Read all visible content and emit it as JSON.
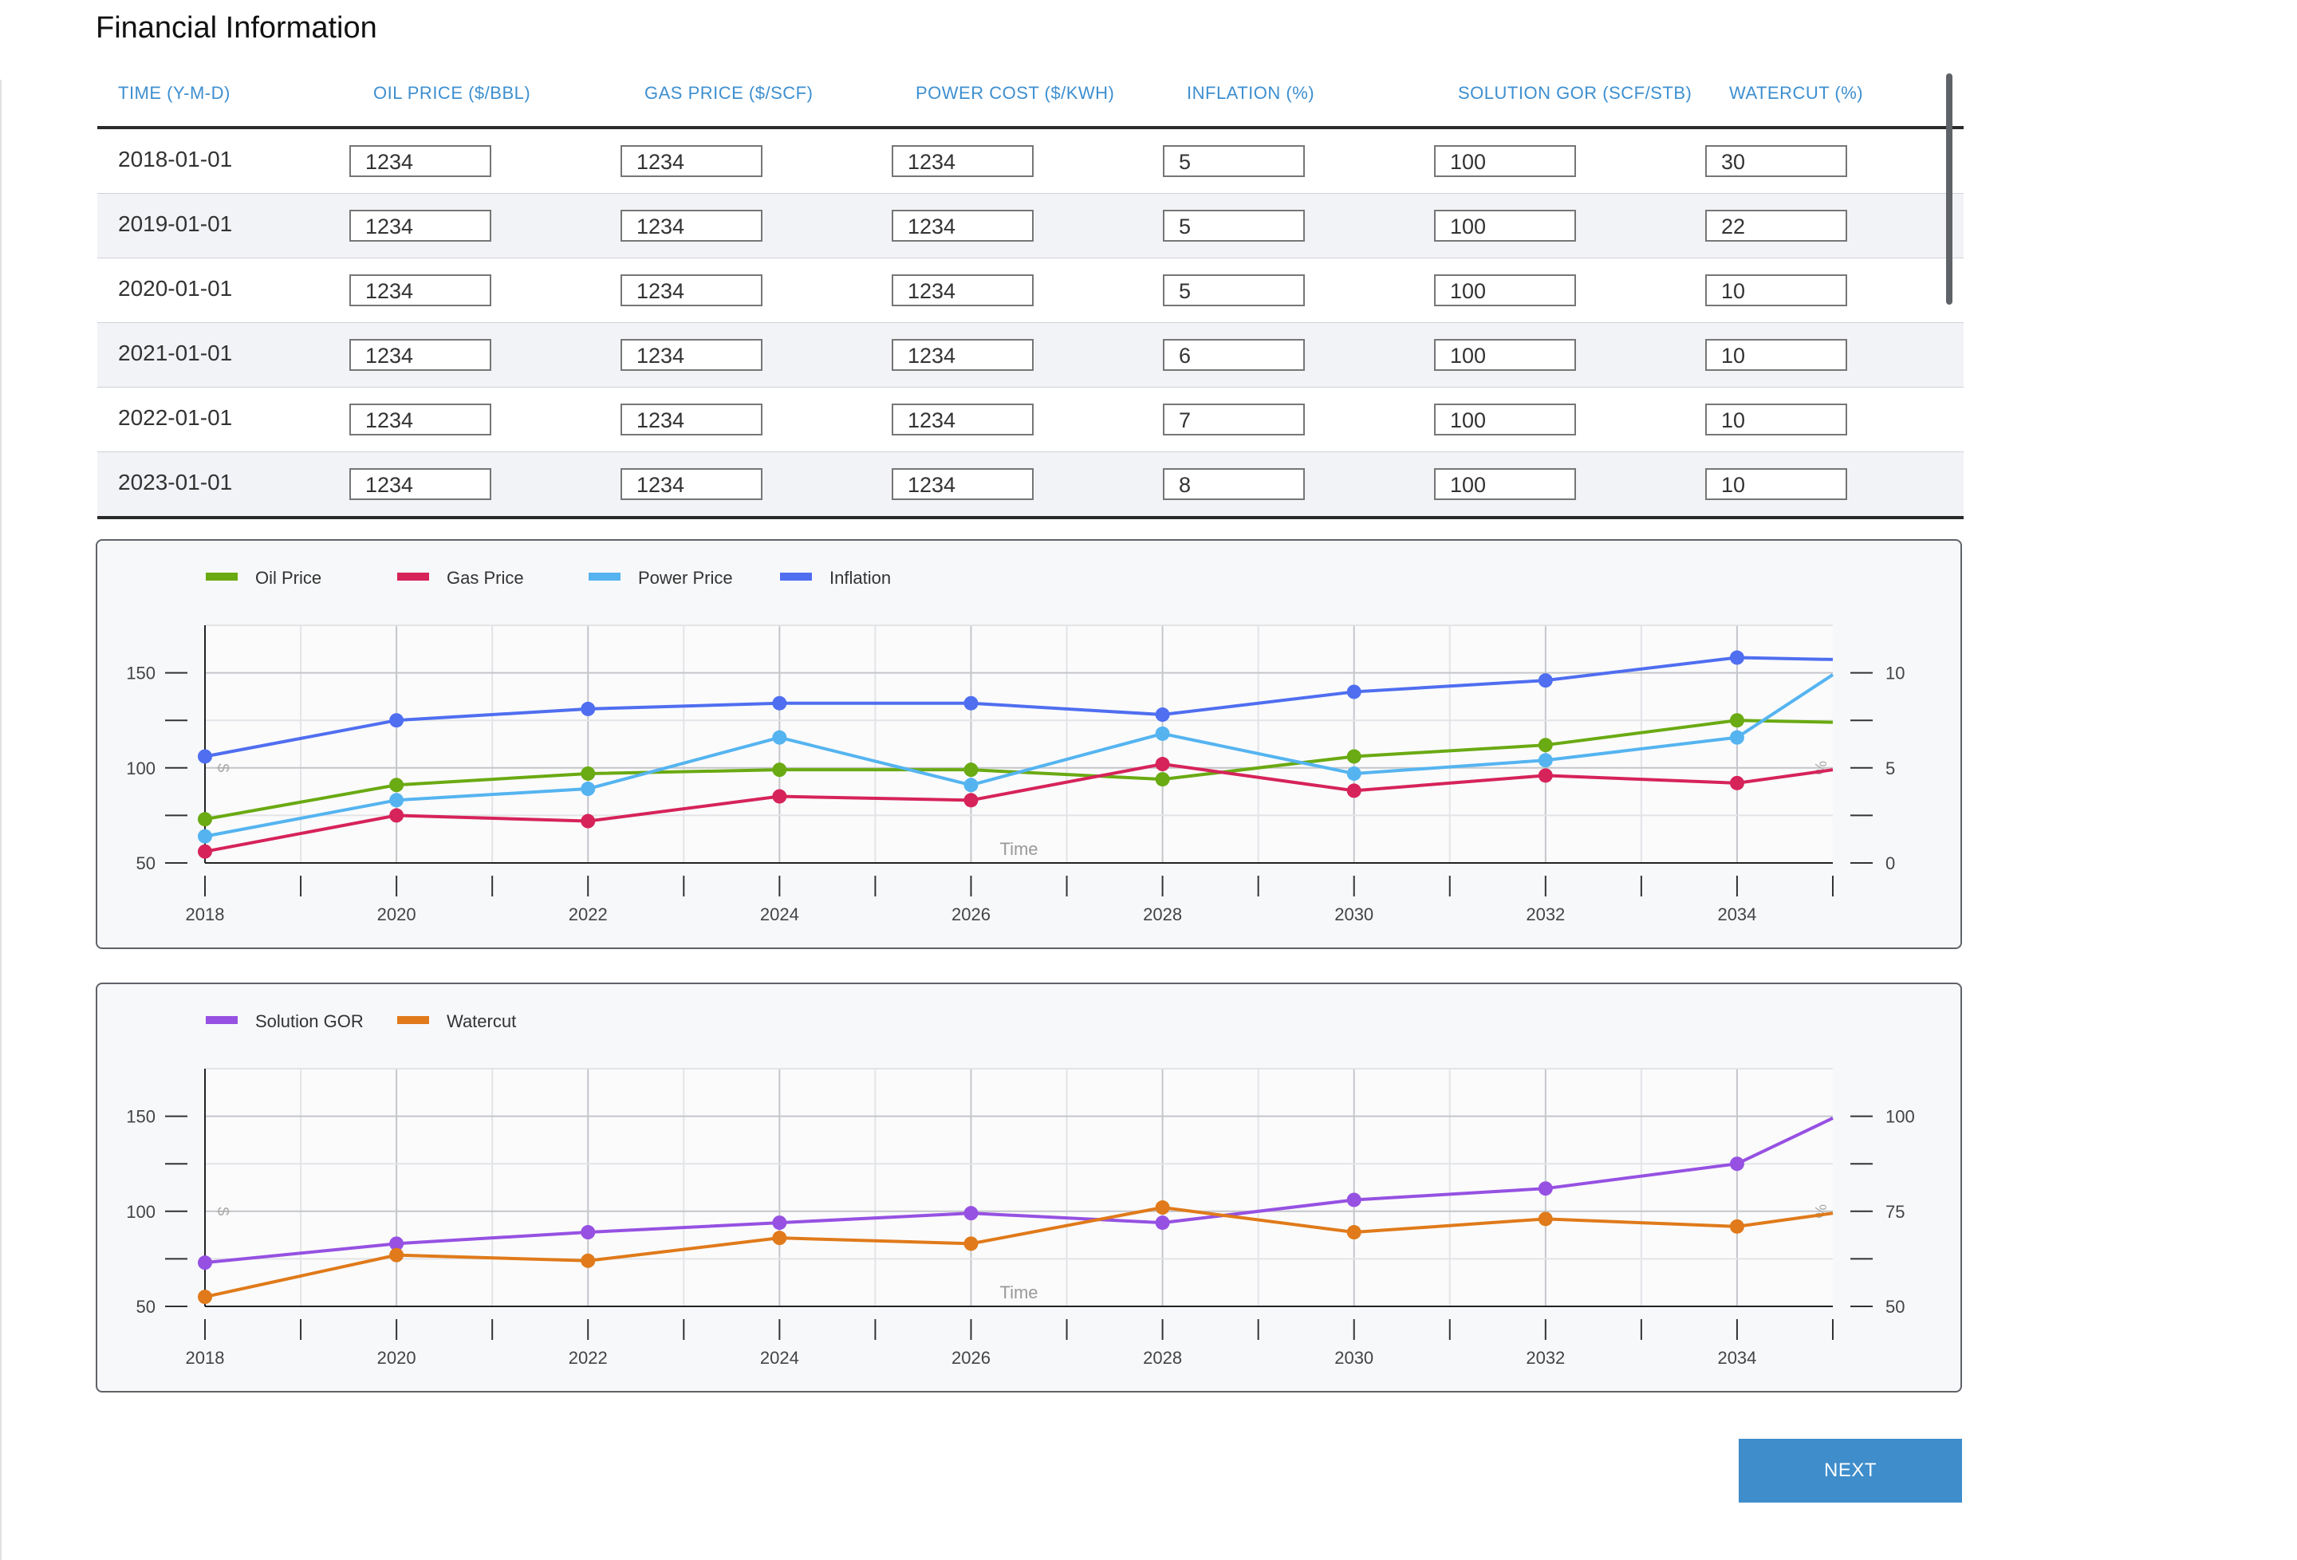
{
  "page": {
    "title": "Financial Information"
  },
  "table": {
    "headers": [
      "TIME (Y-M-D)",
      "OIL PRICE ($/BBL)",
      "GAS PRICE ($/SCF)",
      "POWER COST ($/KWH)",
      "INFLATION (%)",
      "SOLUTION GOR (SCF/STB)",
      "WATERCUT (%)"
    ],
    "rows": [
      {
        "date": "2018-01-01",
        "values": [
          "1234",
          "1234",
          "1234",
          "5",
          "100",
          "30"
        ]
      },
      {
        "date": "2019-01-01",
        "values": [
          "1234",
          "1234",
          "1234",
          "5",
          "100",
          "22"
        ]
      },
      {
        "date": "2020-01-01",
        "values": [
          "1234",
          "1234",
          "1234",
          "5",
          "100",
          "10"
        ]
      },
      {
        "date": "2021-01-01",
        "values": [
          "1234",
          "1234",
          "1234",
          "6",
          "100",
          "10"
        ]
      },
      {
        "date": "2022-01-01",
        "values": [
          "1234",
          "1234",
          "1234",
          "7",
          "100",
          "10"
        ]
      },
      {
        "date": "2023-01-01",
        "values": [
          "1234",
          "1234",
          "1234",
          "8",
          "100",
          "10"
        ]
      }
    ]
  },
  "next_button": {
    "label": "NEXT",
    "color": "#3f8dcb"
  },
  "chart_data": [
    {
      "type": "line",
      "x": [
        2018,
        2020,
        2022,
        2024,
        2026,
        2028,
        2030,
        2032,
        2034,
        2035
      ],
      "xlabel": "Time",
      "ylabel_left": "$",
      "ylabel_right": "%",
      "xlim": [
        2018,
        2035
      ],
      "ylim_left": [
        50,
        175
      ],
      "ylim_right": [
        0,
        12.5
      ],
      "x_ticks": [
        2018,
        2020,
        2022,
        2024,
        2026,
        2028,
        2030,
        2032,
        2034
      ],
      "y_ticks_left": [
        50,
        100,
        150
      ],
      "y_ticks_right": [
        0,
        5,
        10
      ],
      "grid": true,
      "legend_position": "top-left",
      "series": [
        {
          "name": "Oil Price",
          "axis": "left",
          "color": "#6aaa12",
          "values": [
            73,
            91,
            97,
            99,
            99,
            94,
            106,
            112,
            125,
            124
          ]
        },
        {
          "name": "Gas Price",
          "axis": "left",
          "color": "#d6235a",
          "values": [
            56,
            75,
            72,
            85,
            83,
            102,
            88,
            96,
            92,
            99
          ]
        },
        {
          "name": "Power Price",
          "axis": "left",
          "color": "#55b4f0",
          "values": [
            64,
            83,
            89,
            116,
            91,
            118,
            97,
            104,
            116,
            149
          ]
        },
        {
          "name": "Inflation",
          "axis": "right",
          "color": "#4f6ef0",
          "values": [
            5.6,
            7.5,
            8.1,
            8.4,
            8.4,
            7.8,
            9.0,
            9.6,
            10.8,
            10.7
          ]
        }
      ]
    },
    {
      "type": "line",
      "x": [
        2018,
        2020,
        2022,
        2024,
        2026,
        2028,
        2030,
        2032,
        2034,
        2035
      ],
      "xlabel": "Time",
      "ylabel_left": "$",
      "ylabel_right": "%",
      "xlim": [
        2018,
        2035
      ],
      "ylim_left": [
        50,
        175
      ],
      "ylim_right": [
        50,
        112.5
      ],
      "x_ticks": [
        2018,
        2020,
        2022,
        2024,
        2026,
        2028,
        2030,
        2032,
        2034
      ],
      "y_ticks_left": [
        50,
        100,
        150
      ],
      "y_ticks_right": [
        50,
        75,
        100
      ],
      "grid": true,
      "legend_position": "top-left",
      "series": [
        {
          "name": "Solution GOR",
          "axis": "left",
          "color": "#9651e2",
          "values": [
            73,
            83,
            89,
            94,
            99,
            94,
            106,
            112,
            125,
            149
          ]
        },
        {
          "name": "Watercut",
          "axis": "right",
          "color": "#e07a1a",
          "values": [
            52.5,
            63.5,
            62,
            68,
            66.5,
            76,
            69.5,
            73,
            71,
            74.5
          ]
        }
      ]
    }
  ]
}
